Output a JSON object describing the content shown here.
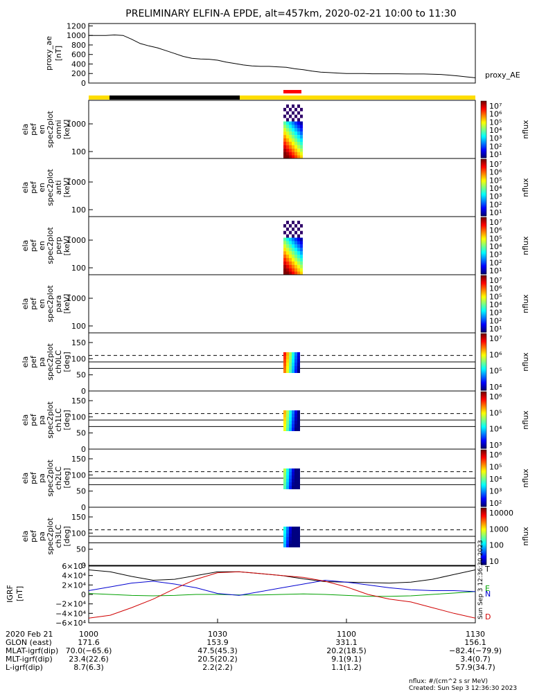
{
  "title": "PRELIMINARY ELFIN-A EPDE, alt=457km, 2020-02-21 10:00 to 11:30",
  "colors": {
    "ae_line": "#000000",
    "state_bar": "#ffdd00",
    "state_dark": "#000000",
    "science_zone": "#ff0000",
    "grf_total": "#000000",
    "grf_e": "#00a000",
    "grf_n": "#0000d0",
    "grf_d": "#d00000"
  },
  "proxy_panel": {
    "ylabel": [
      "proxy_ae",
      "[nT]"
    ],
    "yticks": [
      "1200",
      "1000",
      "800",
      "600",
      "400",
      "200",
      "0"
    ],
    "series_label": "proxy_AE",
    "chart_data": {
      "type": "line",
      "x_minutes": [
        0,
        2,
        4,
        6,
        8,
        10,
        12,
        14,
        16,
        18,
        20,
        22,
        24,
        26,
        28,
        30,
        32,
        34,
        36,
        38,
        40,
        42,
        44,
        46,
        48,
        50,
        52,
        54,
        56,
        58,
        60,
        62,
        64,
        66,
        68,
        70,
        72,
        74,
        76,
        78,
        80,
        82,
        84,
        86,
        88,
        90
      ],
      "y": [
        1000,
        1000,
        1000,
        1010,
        1000,
        920,
        830,
        780,
        740,
        680,
        620,
        560,
        520,
        505,
        500,
        480,
        440,
        410,
        380,
        360,
        350,
        350,
        340,
        330,
        300,
        280,
        250,
        230,
        220,
        210,
        200,
        200,
        200,
        195,
        195,
        195,
        195,
        190,
        190,
        190,
        185,
        180,
        165,
        150,
        130,
        110
      ],
      "ylim": [
        0,
        1250
      ]
    }
  },
  "energy_panels": [
    {
      "ylabel": [
        "ela",
        "pef",
        "en",
        "spec2plot",
        "omni",
        "[keV]"
      ],
      "yticks": [
        "1000",
        "100"
      ],
      "cbar_ticks": [
        "10⁷",
        "10⁶",
        "10⁵",
        "10⁴",
        "10³",
        "10²",
        "10¹"
      ],
      "cbar_label": "nflux"
    },
    {
      "ylabel": [
        "ela",
        "pef",
        "en",
        "spec2plot",
        "anti",
        "[keV]"
      ],
      "yticks": [
        "1000",
        "100"
      ],
      "cbar_ticks": [
        "10⁷",
        "10⁶",
        "10⁵",
        "10⁴",
        "10³",
        "10²",
        "10¹"
      ],
      "cbar_label": "nflux"
    },
    {
      "ylabel": [
        "ela",
        "pef",
        "en",
        "spec2plot",
        "perp",
        "[keV]"
      ],
      "yticks": [
        "1000",
        "100"
      ],
      "cbar_ticks": [
        "10⁷",
        "10⁶",
        "10⁵",
        "10⁴",
        "10³",
        "10²",
        "10¹"
      ],
      "cbar_label": "nflux"
    },
    {
      "ylabel": [
        "ela",
        "pef",
        "en",
        "spec2plot",
        "para",
        "[keV]"
      ],
      "yticks": [
        "1000",
        "100"
      ],
      "cbar_ticks": [
        "10⁷",
        "10⁶",
        "10⁵",
        "10⁴",
        "10³",
        "10²",
        "10¹"
      ],
      "cbar_label": "nflux"
    }
  ],
  "pa_panels": [
    {
      "ylabel": [
        "ela",
        "pef",
        "pa",
        "spec2plot",
        "ch0LC",
        "[deg]"
      ],
      "yticks": [
        "150",
        "100",
        "50",
        "0"
      ],
      "cbar_ticks": [
        "10⁷",
        "10⁶",
        "10⁵",
        "10⁴"
      ],
      "cbar_label": "nflux"
    },
    {
      "ylabel": [
        "ela",
        "pef",
        "pa",
        "spec2plot",
        "ch1LC",
        "[deg]"
      ],
      "yticks": [
        "150",
        "100",
        "50",
        "0"
      ],
      "cbar_ticks": [
        "10⁶",
        "10⁵",
        "10⁴",
        "10³"
      ],
      "cbar_label": "nflux"
    },
    {
      "ylabel": [
        "ela",
        "pef",
        "pa",
        "spec2plot",
        "ch2LC",
        "[deg]"
      ],
      "yticks": [
        "150",
        "100",
        "50",
        "0"
      ],
      "cbar_ticks": [
        "10⁶",
        "10⁵",
        "10⁴",
        "10³",
        "10²"
      ],
      "cbar_label": "nflux"
    },
    {
      "ylabel": [
        "ela",
        "pef",
        "pa",
        "spec2plot",
        "ch3LC",
        "[deg]"
      ],
      "yticks": [
        "150",
        "100",
        "50",
        "0"
      ],
      "cbar_ticks": [
        "10000",
        "1000",
        "100",
        "10"
      ],
      "cbar_label": "nflux"
    }
  ],
  "grf_panel": {
    "ylabel": [
      "IGRF",
      "[nT]"
    ],
    "yticks": [
      "6×10⁴",
      "4×10⁴",
      "2×10⁴",
      "0",
      "−2×10⁴",
      "−4×10⁴",
      "−6×10⁴"
    ],
    "legend": [
      "T",
      "E",
      "N",
      "D"
    ],
    "side_note": "Sun Sep  3 12:36:30 2023",
    "chart_data": {
      "type": "line",
      "x_minutes": [
        0,
        5,
        10,
        15,
        20,
        25,
        30,
        35,
        40,
        45,
        50,
        55,
        60,
        65,
        70,
        75,
        80,
        85,
        90
      ],
      "ylim": [
        -60000,
        60000
      ],
      "series": [
        {
          "name": "T",
          "values": [
            52000,
            48000,
            38000,
            30000,
            32000,
            40000,
            48000,
            48000,
            44000,
            40000,
            33000,
            27000,
            26000,
            25000,
            24000,
            26000,
            32000,
            42000,
            52000
          ]
        },
        {
          "name": "E",
          "values": [
            2000,
            0,
            -2000,
            -3000,
            -2000,
            0,
            0,
            -1000,
            -1000,
            0,
            1000,
            0,
            -2000,
            -4000,
            -4000,
            -3000,
            0,
            3000,
            6000
          ]
        },
        {
          "name": "N",
          "values": [
            8000,
            16000,
            24000,
            28000,
            22000,
            14000,
            2000,
            -2000,
            6000,
            14000,
            22000,
            30000,
            26000,
            20000,
            14000,
            10000,
            8000,
            8000,
            6000
          ]
        },
        {
          "name": "D",
          "values": [
            -50000,
            -44000,
            -28000,
            -10000,
            12000,
            32000,
            46000,
            48000,
            44000,
            40000,
            36000,
            28000,
            16000,
            0,
            -10000,
            -16000,
            -28000,
            -40000,
            -50000
          ]
        }
      ]
    }
  },
  "x_axis": {
    "ticks": [
      "1000",
      "1030",
      "1100",
      "1130"
    ],
    "rows": [
      {
        "label": "2020 Feb 21",
        "values": [
          "1000",
          "1030",
          "1100",
          "1130"
        ]
      },
      {
        "label": "GLON (east)",
        "values": [
          "171.6",
          "153.9",
          "331.1",
          "156.1"
        ]
      },
      {
        "label": "MLAT-igrf(dip)",
        "values": [
          "70.0(−65.6)",
          "47.5(45.3)",
          "20.2(18.5)",
          "−82.4(−79.9)"
        ]
      },
      {
        "label": "MLT-igrf(dip)",
        "values": [
          "23.4(22.6)",
          "20.5(20.2)",
          "9.1(9.1)",
          "3.4(0.7)"
        ]
      },
      {
        "label": "L-igrf(dip)",
        "values": [
          "8.7(6.3)",
          "2.2(2.2)",
          "1.1(1.2)",
          "57.9(34.7)"
        ]
      }
    ]
  },
  "footer": {
    "line1": "nflux: #/(cm^2 s sr MeV)",
    "line2": "Created: Sun Sep  3 12:36:30 2023"
  }
}
